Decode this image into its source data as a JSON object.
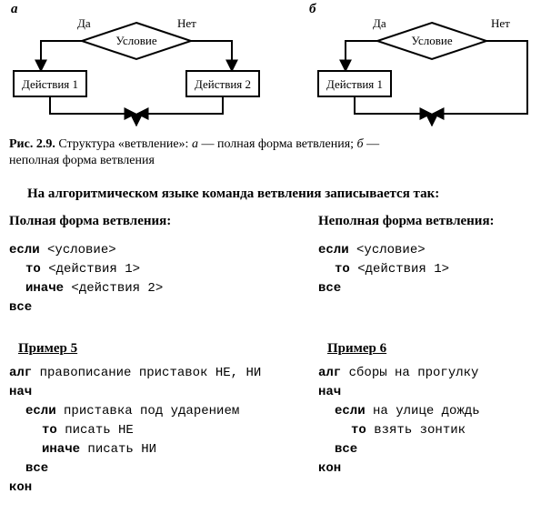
{
  "panel_a": {
    "letter": "a",
    "yes": "Да",
    "no": "Нет",
    "cond": "Условие",
    "act1": "Действия 1",
    "act2": "Действия 2"
  },
  "panel_b": {
    "letter": "б",
    "yes": "Да",
    "no": "Нет",
    "cond": "Условие",
    "act1": "Действия 1"
  },
  "caption": {
    "line1_bold": "Рис. 2.9.",
    "line1_rest": " Структура «ветвление»: ",
    "a": "a",
    "mid": " — полная форма ветвления; ",
    "b": "б",
    "line2": "неполная форма ветвления"
  },
  "intro": "На алгоритмическом языке команда ветвления записывается так:",
  "left": {
    "title": "Полная форма ветвления:",
    "code": [
      {
        "kw": "если",
        "rest": " <условие>"
      },
      {
        "indent": 1,
        "kw": "то",
        "rest": " <действия 1>"
      },
      {
        "indent": 1,
        "kw": "иначе",
        "rest": " <действия 2>"
      },
      {
        "kw": "все",
        "rest": ""
      }
    ]
  },
  "right": {
    "title": "Неполная форма ветвления:",
    "code": [
      {
        "kw": "если",
        "rest": " <условие>"
      },
      {
        "indent": 1,
        "kw": "то",
        "rest": " <действия 1>"
      },
      {
        "kw": "все",
        "rest": ""
      }
    ]
  },
  "ex5": {
    "title": "Пример 5",
    "code": [
      {
        "kw": "алг",
        "rest": " правописание приставок НЕ, НИ"
      },
      {
        "kw": "нач",
        "rest": ""
      },
      {
        "indent": 1,
        "kw": "если",
        "rest": " приставка под ударением"
      },
      {
        "indent": 2,
        "kw": "то",
        "rest": " писать НЕ"
      },
      {
        "indent": 2,
        "kw": "иначе",
        "rest": " писать НИ"
      },
      {
        "indent": 1,
        "kw": "все",
        "rest": ""
      },
      {
        "kw": "кон",
        "rest": ""
      }
    ]
  },
  "ex6": {
    "title": "Пример 6",
    "code": [
      {
        "kw": "алг",
        "rest": " сборы на прогулку"
      },
      {
        "kw": "нач",
        "rest": ""
      },
      {
        "indent": 1,
        "kw": "если",
        "rest": " на улице дождь"
      },
      {
        "indent": 2,
        "kw": "то",
        "rest": " взять зонтик"
      },
      {
        "indent": 1,
        "kw": "все",
        "rest": ""
      },
      {
        "kw": "кон",
        "rest": ""
      }
    ]
  },
  "style": {
    "stroke": "#000",
    "stroke_w": 2,
    "font_cond": 13,
    "font_box": 13,
    "font_label": 13
  }
}
